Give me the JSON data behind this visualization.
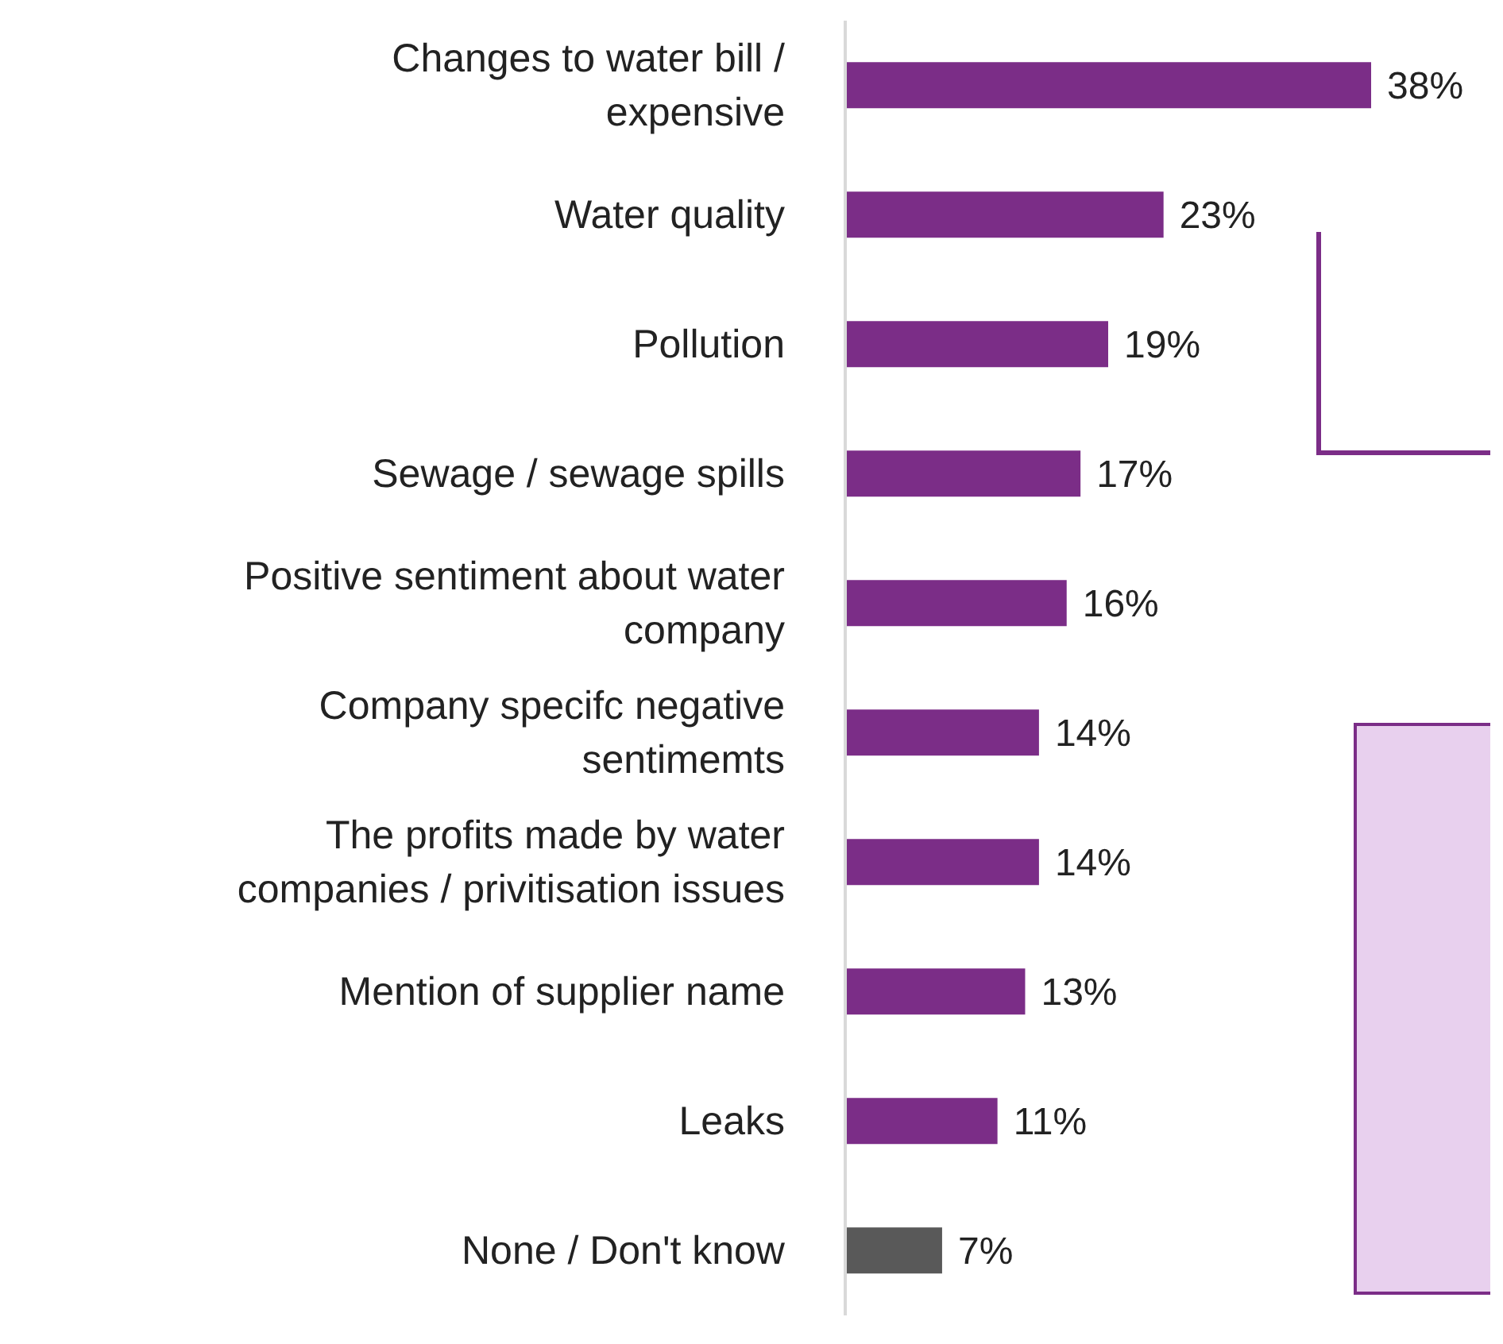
{
  "chart_data": {
    "type": "bar",
    "orientation": "horizontal",
    "categories": [
      "Changes to water bill / expensive",
      "Water quality",
      "Pollution",
      "Sewage / sewage spills",
      "Positive sentiment about water company",
      "Company specifc negative sentimemts",
      "The profits made by water companies / privitisation issues",
      "Mention of supplier name",
      "Leaks",
      "None / Don't know"
    ],
    "values": [
      38,
      23,
      19,
      17,
      16,
      14,
      14,
      13,
      11,
      7
    ],
    "colors": [
      "#7b2d87",
      "#7b2d87",
      "#7b2d87",
      "#7b2d87",
      "#7b2d87",
      "#7b2d87",
      "#7b2d87",
      "#7b2d87",
      "#7b2d87",
      "#595959"
    ],
    "value_labels": [
      "38%",
      "23%",
      "19%",
      "17%",
      "16%",
      "14%",
      "14%",
      "13%",
      "11%",
      "7%"
    ]
  }
}
